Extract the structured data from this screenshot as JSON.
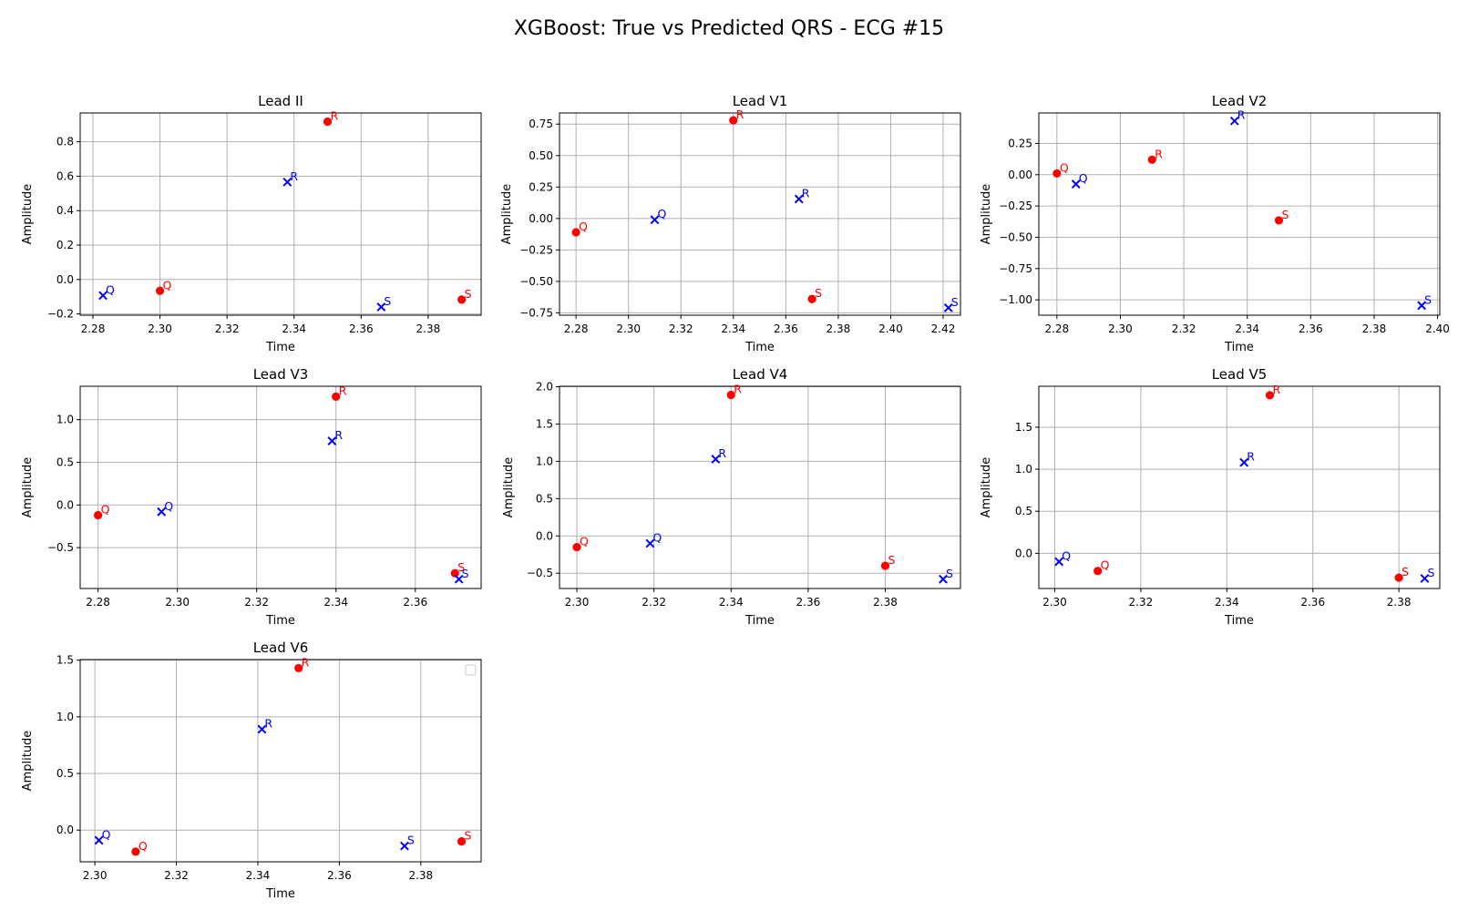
{
  "figure": {
    "title": "XGBoost: True vs Predicted QRS - ECG #15"
  },
  "colors": {
    "true": "#ff0000",
    "pred": "#0000ff",
    "grid": "#b0b0b0",
    "axis": "#000000"
  },
  "chart_data": [
    {
      "type": "scatter",
      "title": "Lead II",
      "xlabel": "Time",
      "ylabel": "Amplitude",
      "xlim": [
        2.2762,
        2.3958
      ],
      "ylim": [
        -0.2075,
        0.9674
      ],
      "xticks": [
        "2.28",
        "2.30",
        "2.32",
        "2.34",
        "2.36",
        "2.38"
      ],
      "yticks": [
        "−0.2",
        "0.0",
        "0.2",
        "0.4",
        "0.6",
        "0.8"
      ],
      "xtick_values": [
        2.28,
        2.3,
        2.32,
        2.34,
        2.36,
        2.38
      ],
      "ytick_values": [
        -0.2,
        0.0,
        0.2,
        0.4,
        0.6,
        0.8
      ],
      "series": [
        {
          "points": [
            {
              "x": 2.3,
              "y": -0.066,
              "label": "Q"
            },
            {
              "x": 2.35,
              "y": 0.917,
              "label": "R"
            },
            {
              "x": 2.39,
              "y": -0.117,
              "label": "S"
            }
          ]
        },
        {
          "points": [
            {
              "x": 2.283,
              "y": -0.093,
              "label": "Q"
            },
            {
              "x": 2.338,
              "y": 0.566,
              "label": "R"
            },
            {
              "x": 2.366,
              "y": -0.16,
              "label": "S"
            }
          ]
        }
      ]
    },
    {
      "type": "scatter",
      "title": "Lead V1",
      "xlabel": "Time",
      "ylabel": "Amplitude",
      "xlim": [
        2.2737,
        2.4266
      ],
      "ylim": [
        -0.7686,
        0.8385
      ],
      "xticks": [
        "2.28",
        "2.30",
        "2.32",
        "2.34",
        "2.36",
        "2.38",
        "2.40",
        "2.42"
      ],
      "yticks": [
        "−0.75",
        "−0.50",
        "−0.25",
        "0.00",
        "0.25",
        "0.50",
        "0.75"
      ],
      "xtick_values": [
        2.28,
        2.3,
        2.32,
        2.34,
        2.36,
        2.38,
        2.4,
        2.42
      ],
      "ytick_values": [
        -0.75,
        -0.5,
        -0.25,
        0.0,
        0.25,
        0.5,
        0.75
      ],
      "series": [
        {
          "points": [
            {
              "x": 2.28,
              "y": -0.11,
              "label": "Q"
            },
            {
              "x": 2.34,
              "y": 0.78,
              "label": "R"
            },
            {
              "x": 2.37,
              "y": -0.64,
              "label": "S"
            }
          ]
        },
        {
          "points": [
            {
              "x": 2.31,
              "y": -0.01,
              "label": "Q"
            },
            {
              "x": 2.365,
              "y": 0.155,
              "label": "R"
            },
            {
              "x": 2.422,
              "y": -0.71,
              "label": "S"
            }
          ]
        }
      ]
    },
    {
      "type": "scatter",
      "title": "Lead V2",
      "xlabel": "Time",
      "ylabel": "Amplitude",
      "xlim": [
        2.2743,
        2.4007
      ],
      "ylim": [
        -1.1227,
        0.4935
      ],
      "xticks": [
        "2.28",
        "2.30",
        "2.32",
        "2.34",
        "2.36",
        "2.38",
        "2.40"
      ],
      "yticks": [
        "−1.00",
        "−0.75",
        "−0.50",
        "−0.25",
        "0.00",
        "0.25"
      ],
      "xtick_values": [
        2.28,
        2.3,
        2.32,
        2.34,
        2.36,
        2.38,
        2.4
      ],
      "ytick_values": [
        -1.0,
        -0.75,
        -0.5,
        -0.25,
        0.0,
        0.25
      ],
      "series": [
        {
          "points": [
            {
              "x": 2.28,
              "y": 0.01,
              "label": "Q"
            },
            {
              "x": 2.31,
              "y": 0.12,
              "label": "R"
            },
            {
              "x": 2.35,
              "y": -0.365,
              "label": "S"
            }
          ]
        },
        {
          "points": [
            {
              "x": 2.286,
              "y": -0.075,
              "label": "Q"
            },
            {
              "x": 2.336,
              "y": 0.43,
              "label": "R"
            },
            {
              "x": 2.395,
              "y": -1.045,
              "label": "S"
            }
          ]
        }
      ]
    },
    {
      "type": "scatter",
      "title": "Lead V3",
      "xlabel": "Time",
      "ylabel": "Amplitude",
      "xlim": [
        2.2755,
        2.3766
      ],
      "ylim": [
        -0.9793,
        1.3915
      ],
      "xticks": [
        "2.28",
        "2.30",
        "2.32",
        "2.34",
        "2.36"
      ],
      "yticks": [
        "−0.5",
        "0.0",
        "0.5",
        "1.0"
      ],
      "xtick_values": [
        2.28,
        2.3,
        2.32,
        2.34,
        2.36
      ],
      "ytick_values": [
        -0.5,
        0.0,
        0.5,
        1.0
      ],
      "series": [
        {
          "points": [
            {
              "x": 2.28,
              "y": -0.12,
              "label": "Q"
            },
            {
              "x": 2.34,
              "y": 1.27,
              "label": "R"
            },
            {
              "x": 2.37,
              "y": -0.8,
              "label": "S"
            }
          ]
        },
        {
          "points": [
            {
              "x": 2.296,
              "y": -0.08,
              "label": "Q"
            },
            {
              "x": 2.339,
              "y": 0.75,
              "label": "R"
            },
            {
              "x": 2.371,
              "y": -0.87,
              "label": "S"
            }
          ]
        }
      ]
    },
    {
      "type": "scatter",
      "title": "Lead V4",
      "xlabel": "Time",
      "ylabel": "Amplitude",
      "xlim": [
        2.2955,
        2.3995
      ],
      "ylim": [
        -0.7048,
        2.0063
      ],
      "xticks": [
        "2.30",
        "2.32",
        "2.34",
        "2.36",
        "2.38"
      ],
      "yticks": [
        "−0.5",
        "0.0",
        "0.5",
        "1.0",
        "1.5",
        "2.0"
      ],
      "xtick_values": [
        2.3,
        2.32,
        2.34,
        2.36,
        2.38
      ],
      "ytick_values": [
        -0.5,
        0.0,
        0.5,
        1.0,
        1.5,
        2.0
      ],
      "series": [
        {
          "points": [
            {
              "x": 2.3,
              "y": -0.15,
              "label": "Q"
            },
            {
              "x": 2.34,
              "y": 1.89,
              "label": "R"
            },
            {
              "x": 2.38,
              "y": -0.4,
              "label": "S"
            }
          ]
        },
        {
          "points": [
            {
              "x": 2.319,
              "y": -0.1,
              "label": "Q"
            },
            {
              "x": 2.336,
              "y": 1.03,
              "label": "R"
            },
            {
              "x": 2.395,
              "y": -0.58,
              "label": "S"
            }
          ]
        }
      ]
    },
    {
      "type": "scatter",
      "title": "Lead V5",
      "xlabel": "Time",
      "ylabel": "Amplitude",
      "xlim": [
        2.2963,
        2.3895
      ],
      "ylim": [
        -0.4192,
        1.9872
      ],
      "xticks": [
        "2.30",
        "2.32",
        "2.34",
        "2.36",
        "2.38"
      ],
      "yticks": [
        "0.0",
        "0.5",
        "1.0",
        "1.5"
      ],
      "xtick_values": [
        2.3,
        2.32,
        2.34,
        2.36,
        2.38
      ],
      "ytick_values": [
        0.0,
        0.5,
        1.0,
        1.5
      ],
      "series": [
        {
          "points": [
            {
              "x": 2.31,
              "y": -0.21,
              "label": "Q"
            },
            {
              "x": 2.35,
              "y": 1.88,
              "label": "R"
            },
            {
              "x": 2.38,
              "y": -0.29,
              "label": "S"
            }
          ]
        },
        {
          "points": [
            {
              "x": 2.301,
              "y": -0.1,
              "label": "Q"
            },
            {
              "x": 2.344,
              "y": 1.08,
              "label": "R"
            },
            {
              "x": 2.386,
              "y": -0.3,
              "label": "S"
            }
          ]
        }
      ]
    },
    {
      "type": "scatter",
      "title": "Lead V6",
      "xlabel": "Time",
      "ylabel": "Amplitude",
      "xlim": [
        2.2964,
        2.3948
      ],
      "ylim": [
        -0.2797,
        1.5053
      ],
      "xticks": [
        "2.30",
        "2.32",
        "2.34",
        "2.36",
        "2.38"
      ],
      "yticks": [
        "0.0",
        "0.5",
        "1.0",
        "1.5"
      ],
      "xtick_values": [
        2.3,
        2.32,
        2.34,
        2.36,
        2.38
      ],
      "ytick_values": [
        0.0,
        0.5,
        1.0,
        1.5
      ],
      "legend": "top-right",
      "series": [
        {
          "points": [
            {
              "x": 2.31,
              "y": -0.19,
              "label": "Q"
            },
            {
              "x": 2.35,
              "y": 1.43,
              "label": "R"
            },
            {
              "x": 2.39,
              "y": -0.1,
              "label": "S"
            }
          ]
        },
        {
          "points": [
            {
              "x": 2.301,
              "y": -0.09,
              "label": "Q"
            },
            {
              "x": 2.341,
              "y": 0.89,
              "label": "R"
            },
            {
              "x": 2.376,
              "y": -0.14,
              "label": "S"
            }
          ]
        }
      ]
    }
  ]
}
